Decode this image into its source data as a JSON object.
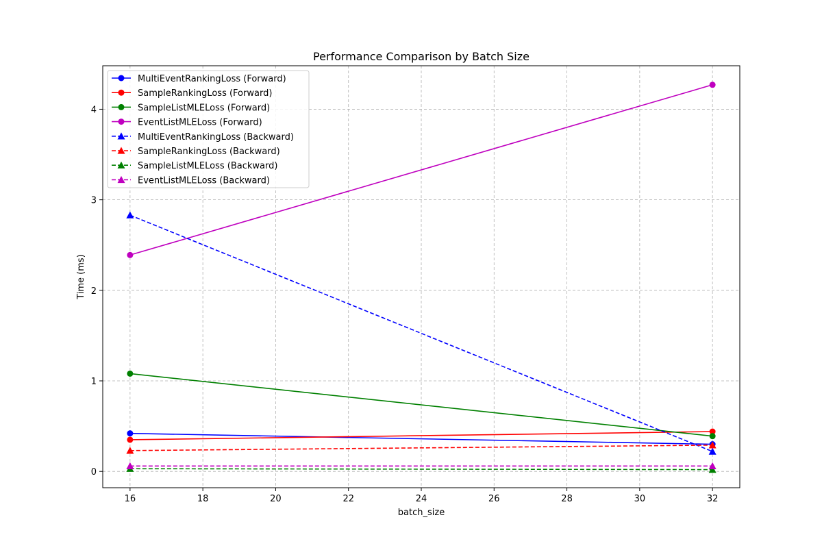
{
  "chart_data": {
    "type": "line",
    "title": "Performance Comparison by Batch Size",
    "xlabel": "batch_size",
    "ylabel": "Time (ms)",
    "x": [
      16,
      32
    ],
    "xlim": [
      15.25,
      32.75
    ],
    "ylim": [
      -0.18,
      4.48
    ],
    "xticks": [
      16,
      18,
      20,
      22,
      24,
      26,
      28,
      30,
      32
    ],
    "yticks": [
      0,
      1,
      2,
      3,
      4
    ],
    "grid": true,
    "legend_position": "upper-left",
    "series": [
      {
        "name": "MultiEventRankingLoss (Forward)",
        "values": [
          0.42,
          0.3
        ],
        "color": "#0000ff",
        "style": "solid",
        "marker": "circle"
      },
      {
        "name": "SampleRankingLoss (Forward)",
        "values": [
          0.35,
          0.44
        ],
        "color": "#ff0000",
        "style": "solid",
        "marker": "circle"
      },
      {
        "name": "SampleListMLELoss (Forward)",
        "values": [
          1.08,
          0.39
        ],
        "color": "#008000",
        "style": "solid",
        "marker": "circle"
      },
      {
        "name": "EventListMLELoss (Forward)",
        "values": [
          2.39,
          4.27
        ],
        "color": "#bf00bf",
        "style": "solid",
        "marker": "circle"
      },
      {
        "name": "MultiEventRankingLoss (Backward)",
        "values": [
          2.83,
          0.22
        ],
        "color": "#0000ff",
        "style": "dashed",
        "marker": "triangle"
      },
      {
        "name": "SampleRankingLoss (Backward)",
        "values": [
          0.23,
          0.29
        ],
        "color": "#ff0000",
        "style": "dashed",
        "marker": "triangle"
      },
      {
        "name": "SampleListMLELoss (Backward)",
        "values": [
          0.03,
          0.02
        ],
        "color": "#008000",
        "style": "dashed",
        "marker": "triangle"
      },
      {
        "name": "EventListMLELoss (Backward)",
        "values": [
          0.06,
          0.06
        ],
        "color": "#bf00bf",
        "style": "dashed",
        "marker": "triangle"
      }
    ]
  }
}
